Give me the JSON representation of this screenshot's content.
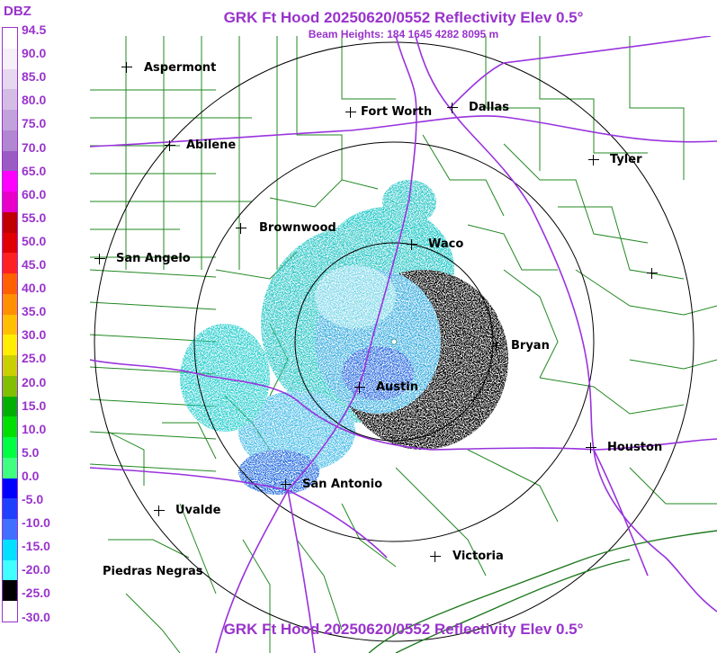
{
  "title": "GRK Ft Hood 20250620/0552 Reflectivity Elev 0.5°",
  "subtitle": "Beam Heights: 184 1645 4282 8095 m",
  "legend": {
    "unit": "DBZ",
    "labels": [
      "94.5",
      "90.0",
      "85.0",
      "80.0",
      "75.0",
      "70.0",
      "65.0",
      "60.0",
      "55.0",
      "50.0",
      "45.0",
      "40.0",
      "35.0",
      "30.0",
      "25.0",
      "20.0",
      "15.0",
      "10.0",
      "5.0",
      "0.0",
      "-5.0",
      "-10.0",
      "-15.0",
      "-20.0",
      "-25.0",
      "-30.0"
    ],
    "colors": [
      "#ffffff",
      "#f6f0f8",
      "#e6d8ee",
      "#d4bde4",
      "#c2a2da",
      "#b087d0",
      "#9a5cc4",
      "#ff00ff",
      "#e800c8",
      "#c00000",
      "#e00000",
      "#ff2020",
      "#ff6000",
      "#ff9000",
      "#ffc000",
      "#ffee00",
      "#c8d000",
      "#80c000",
      "#00b000",
      "#00e000",
      "#00ff40",
      "#40ff80",
      "#0000ff",
      "#2040ff",
      "#4070ff",
      "#00e0ff",
      "#40ffff",
      "#000000",
      "#ffffff"
    ]
  },
  "cities": [
    {
      "name": "Aspermont"
    },
    {
      "name": "Fort Worth"
    },
    {
      "name": "Dallas"
    },
    {
      "name": "Abilene"
    },
    {
      "name": "Tyler"
    },
    {
      "name": "Brownwood"
    },
    {
      "name": "Waco"
    },
    {
      "name": "San Angelo"
    },
    {
      "name": "Bryan"
    },
    {
      "name": "Austin"
    },
    {
      "name": "Houston"
    },
    {
      "name": "San Antonio"
    },
    {
      "name": "Uvalde"
    },
    {
      "name": "Victoria"
    },
    {
      "name": "Piedras Negras"
    },
    {
      "name": ""
    }
  ],
  "colors": {
    "accent": "#9933cc",
    "county": "#228822",
    "highway": "#9933dd",
    "range_ring": "#000000"
  }
}
